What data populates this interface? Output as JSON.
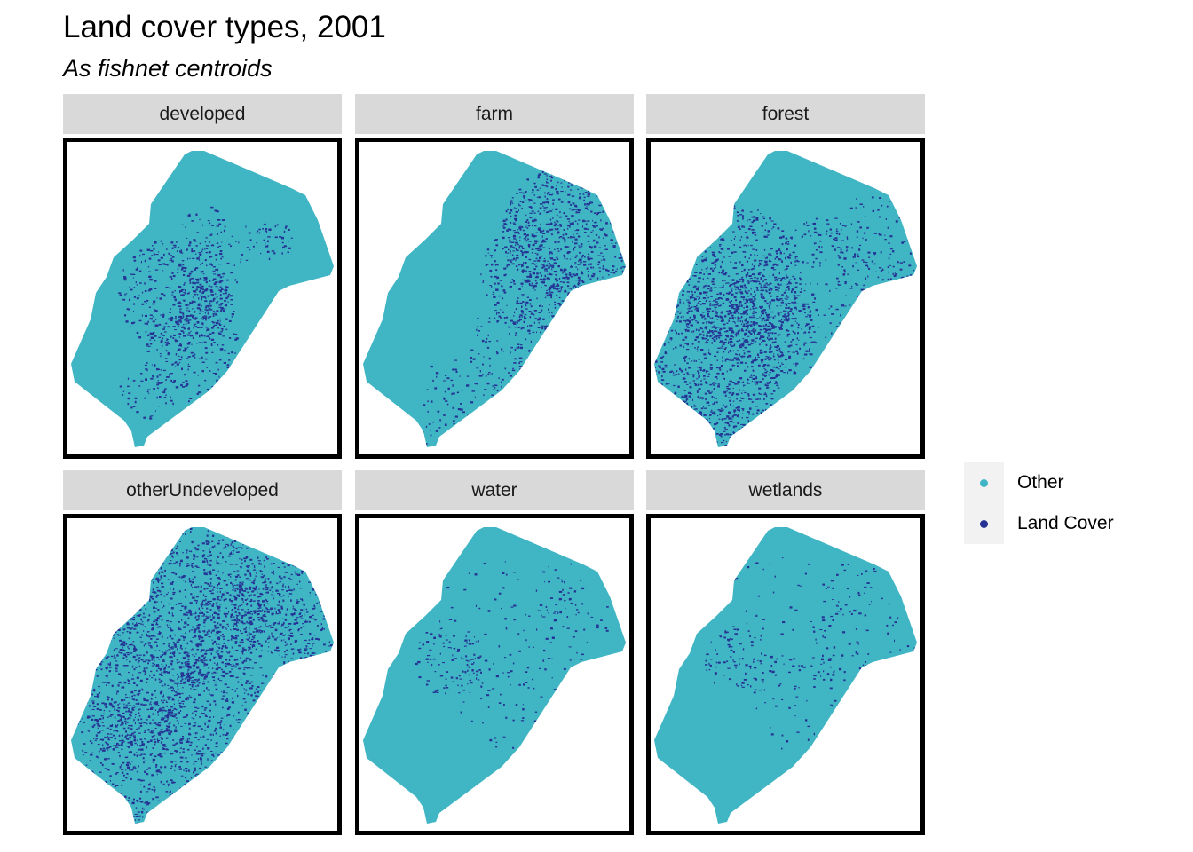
{
  "header": {
    "title": "Land cover types, 2001",
    "subtitle": "As fishnet centroids"
  },
  "colors": {
    "other": "#40b5c4",
    "land_cover": "#253494",
    "strip": "#d9d9d9"
  },
  "panels": [
    {
      "label": "developed",
      "density": "clustered-center"
    },
    {
      "label": "farm",
      "density": "northeast-heavy"
    },
    {
      "label": "forest",
      "density": "west-heavy"
    },
    {
      "label": "otherUndeveloped",
      "density": "dense-widespread"
    },
    {
      "label": "water",
      "density": "sparse-scattered"
    },
    {
      "label": "wetlands",
      "density": "sparse-scattered"
    }
  ],
  "legend": {
    "items": [
      {
        "label": "Other",
        "color": "#40b5c4"
      },
      {
        "label": "Land Cover",
        "color": "#253494"
      }
    ]
  }
}
